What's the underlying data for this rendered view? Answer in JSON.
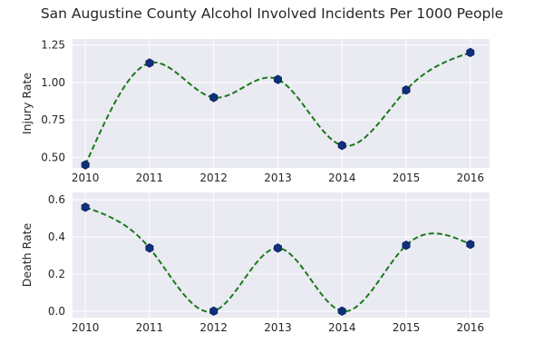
{
  "chart_data": {
    "title": "San Augustine County Alcohol Involved Incidents Per 1000 People",
    "panels": [
      {
        "type": "line",
        "ylabel": "Injury Rate",
        "x": [
          2010,
          2011,
          2012,
          2013,
          2014,
          2015,
          2016
        ],
        "values": [
          0.45,
          1.13,
          0.9,
          1.02,
          0.58,
          0.95,
          1.2
        ],
        "yticks": [
          "0.50",
          "0.75",
          "1.00",
          "1.25"
        ],
        "ytick_values": [
          0.5,
          0.75,
          1.0,
          1.25
        ],
        "xticks": [
          "2010",
          "2011",
          "2012",
          "2013",
          "2014",
          "2015",
          "2016"
        ],
        "ylim": [
          0.43,
          1.29
        ],
        "xlim": [
          2009.8,
          2016.3
        ],
        "grid": true,
        "curve_color": "#1a7a1a",
        "marker_color": "#10307a"
      },
      {
        "type": "line",
        "ylabel": "Death Rate",
        "x": [
          2010,
          2011,
          2012,
          2013,
          2014,
          2015,
          2016
        ],
        "values": [
          0.56,
          0.34,
          0.0,
          0.34,
          0.0,
          0.355,
          0.36
        ],
        "yticks": [
          "0.0",
          "0.2",
          "0.4",
          "0.6"
        ],
        "ytick_values": [
          0.0,
          0.2,
          0.4,
          0.6
        ],
        "xticks": [
          "2010",
          "2011",
          "2012",
          "2013",
          "2014",
          "2015",
          "2016"
        ],
        "ylim": [
          -0.035,
          0.64
        ],
        "xlim": [
          2009.8,
          2016.3
        ],
        "grid": true,
        "curve_color": "#1a7a1a",
        "marker_color": "#10307a"
      }
    ]
  }
}
